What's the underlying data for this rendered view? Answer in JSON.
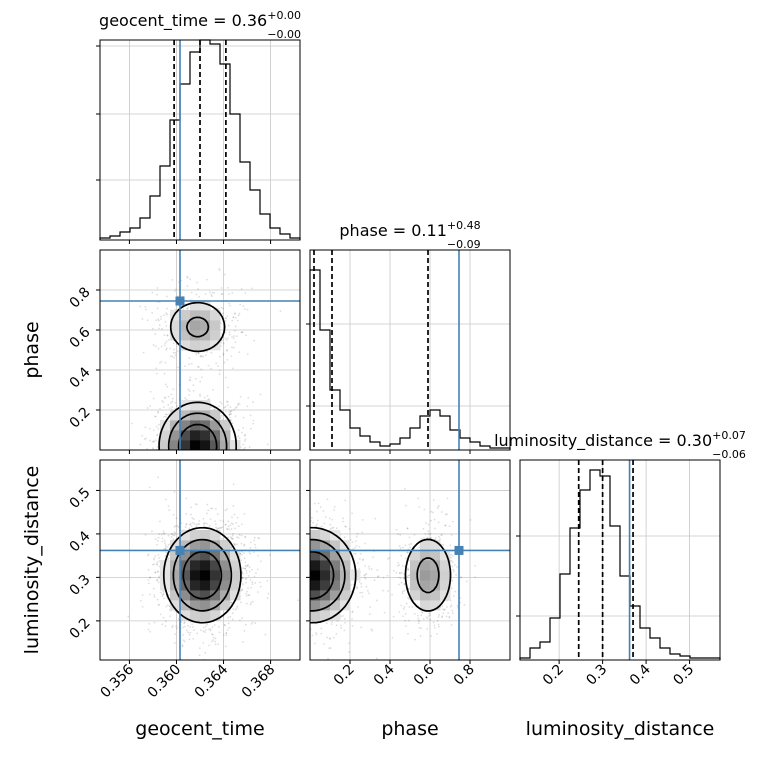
{
  "chart_data": {
    "type": "corner",
    "params": [
      "geocent_time",
      "phase",
      "luminosity_distance"
    ],
    "truths": {
      "geocent_time": 0.3603,
      "phase": 0.745,
      "luminosity_distance": 0.362
    },
    "truth_color": "#4682b4",
    "titles": [
      {
        "param": "geocent_time",
        "prefix": "geocent_time = 0.36",
        "plus": "+0.00",
        "minus": "−0.00"
      },
      {
        "param": "phase",
        "prefix": "phase = 0.11",
        "plus": "+0.48",
        "minus": "−0.09"
      },
      {
        "param": "luminosity_distance",
        "prefix": "luminosity_distance = 0.30",
        "plus": "+0.07",
        "minus": "−0.06"
      }
    ],
    "xlabels": {
      "geocent_time": "geocent_time",
      "phase": "phase",
      "luminosity_distance": "luminosity_distance"
    },
    "ylabels": {
      "phase": "phase",
      "luminosity_distance": "luminosity_distance"
    },
    "ranges": {
      "geocent_time": [
        0.3535,
        0.3705
      ],
      "phase": [
        0.0,
        1.0
      ],
      "luminosity_distance": [
        0.11,
        0.57
      ]
    },
    "ticks": {
      "geocent_time": [
        "0.356",
        "0.360",
        "0.364",
        "0.368"
      ],
      "phase": [
        "0.2",
        "0.4",
        "0.6",
        "0.8"
      ],
      "luminosity_distance": [
        "0.2",
        "0.3",
        "0.4",
        "0.5"
      ]
    },
    "quantiles": {
      "geocent_time": [
        0.3598,
        0.362,
        0.3642
      ],
      "phase": [
        0.02,
        0.11,
        0.59
      ],
      "luminosity_distance": [
        0.245,
        0.3,
        0.37
      ]
    },
    "hist1d": {
      "geocent_time": [
        1,
        2,
        4,
        6,
        11,
        22,
        37,
        60,
        78,
        94,
        100,
        98,
        88,
        63,
        39,
        25,
        13,
        6,
        3,
        1
      ],
      "phase": [
        90,
        60,
        30,
        20,
        11,
        7,
        4,
        2,
        3,
        6,
        11,
        17,
        20,
        17,
        10,
        6,
        4,
        2,
        1,
        1
      ],
      "luminosity_distance": [
        1,
        6,
        9,
        21,
        43,
        66,
        85,
        95,
        92,
        67,
        42,
        27,
        16,
        11,
        6,
        3,
        2,
        1,
        1,
        1
      ]
    },
    "hist1d_ylim": {
      "geocent_time": [
        0,
        100
      ],
      "phase": [
        0,
        100
      ],
      "luminosity_distance": [
        0,
        100
      ]
    },
    "hist1d_yticks": {
      "geocent_time": [
        30,
        63,
        97
      ],
      "phase": [
        22,
        63
      ],
      "luminosity_distance": [
        22,
        62
      ]
    },
    "modes": {
      "phase_vs_geocent_time": [
        {
          "x": 0.3618,
          "y": 0.02,
          "sx": 0.00165,
          "sy": 0.11,
          "w": 0.72
        },
        {
          "x": 0.3618,
          "y": 0.615,
          "sx": 0.0016,
          "sy": 0.085,
          "w": 0.28
        }
      ],
      "luminosity_distance_vs_geocent_time": [
        {
          "x": 0.3622,
          "y": 0.305,
          "sx": 0.00165,
          "sy": 0.055,
          "w": 1.0
        }
      ],
      "luminosity_distance_vs_phase": [
        {
          "x": 0.01,
          "y": 0.305,
          "sx": 0.11,
          "sy": 0.055,
          "w": 0.7
        },
        {
          "x": 0.59,
          "y": 0.305,
          "sx": 0.075,
          "sy": 0.055,
          "w": 0.3
        }
      ]
    }
  }
}
